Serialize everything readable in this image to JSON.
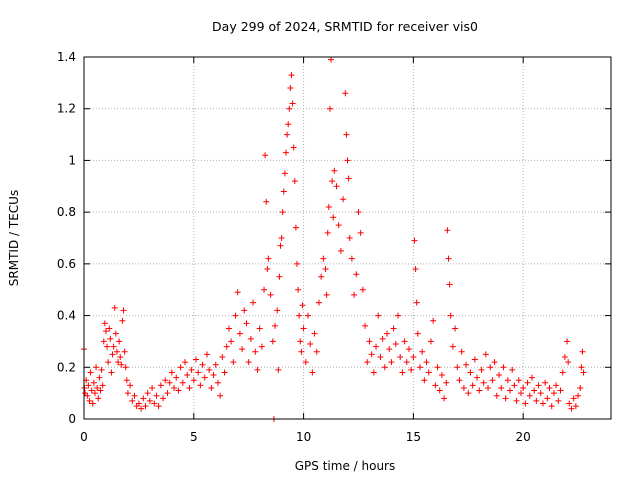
{
  "chart_data": {
    "type": "scatter",
    "title": "Day 299 of 2024, SRMTID for receiver vis0",
    "xlabel": "GPS time / hours",
    "ylabel": "SRMTID / TECUs",
    "xlim": [
      0,
      24
    ],
    "ylim": [
      0,
      1.4
    ],
    "xticks": [
      0,
      5,
      10,
      15,
      20
    ],
    "yticks": [
      0,
      0.2,
      0.4,
      0.6,
      0.8,
      1,
      1.2,
      1.4
    ],
    "xtick_labels": [
      "0",
      "5",
      "10",
      "15",
      "20"
    ],
    "ytick_labels": [
      "0",
      "0.2",
      "0.4",
      "0.6",
      "0.8",
      "1",
      "1.2",
      "1.4"
    ],
    "grid": true,
    "marker": "plus",
    "color": "#ff0000",
    "series": [
      {
        "name": "vis0",
        "points": [
          [
            0.0,
            0.27
          ],
          [
            0.02,
            0.12
          ],
          [
            0.05,
            0.1
          ],
          [
            0.1,
            0.15
          ],
          [
            0.15,
            0.09
          ],
          [
            0.2,
            0.13
          ],
          [
            0.25,
            0.07
          ],
          [
            0.3,
            0.18
          ],
          [
            0.35,
            0.11
          ],
          [
            0.4,
            0.06
          ],
          [
            0.45,
            0.14
          ],
          [
            0.5,
            0.1
          ],
          [
            0.55,
            0.2
          ],
          [
            0.6,
            0.12
          ],
          [
            0.65,
            0.08
          ],
          [
            0.7,
            0.16
          ],
          [
            0.75,
            0.11
          ],
          [
            0.8,
            0.19
          ],
          [
            0.85,
            0.13
          ],
          [
            0.9,
            0.3
          ],
          [
            0.95,
            0.37
          ],
          [
            1.0,
            0.34
          ],
          [
            1.05,
            0.28
          ],
          [
            1.1,
            0.22
          ],
          [
            1.15,
            0.35
          ],
          [
            1.2,
            0.31
          ],
          [
            1.25,
            0.18
          ],
          [
            1.3,
            0.25
          ],
          [
            1.35,
            0.28
          ],
          [
            1.4,
            0.43
          ],
          [
            1.45,
            0.33
          ],
          [
            1.5,
            0.26
          ],
          [
            1.55,
            0.22
          ],
          [
            1.6,
            0.3
          ],
          [
            1.65,
            0.24
          ],
          [
            1.7,
            0.21
          ],
          [
            1.75,
            0.38
          ],
          [
            1.8,
            0.42
          ],
          [
            1.85,
            0.26
          ],
          [
            1.9,
            0.2
          ],
          [
            1.95,
            0.15
          ],
          [
            2.0,
            0.1
          ],
          [
            2.1,
            0.13
          ],
          [
            2.2,
            0.07
          ],
          [
            2.3,
            0.09
          ],
          [
            2.4,
            0.05
          ],
          [
            2.5,
            0.06
          ],
          [
            2.6,
            0.04
          ],
          [
            2.7,
            0.08
          ],
          [
            2.8,
            0.05
          ],
          [
            2.9,
            0.1
          ],
          [
            3.0,
            0.07
          ],
          [
            3.1,
            0.12
          ],
          [
            3.2,
            0.06
          ],
          [
            3.3,
            0.09
          ],
          [
            3.4,
            0.05
          ],
          [
            3.5,
            0.13
          ],
          [
            3.6,
            0.08
          ],
          [
            3.7,
            0.15
          ],
          [
            3.8,
            0.1
          ],
          [
            3.9,
            0.14
          ],
          [
            4.0,
            0.18
          ],
          [
            4.1,
            0.12
          ],
          [
            4.2,
            0.16
          ],
          [
            4.3,
            0.11
          ],
          [
            4.4,
            0.2
          ],
          [
            4.5,
            0.14
          ],
          [
            4.6,
            0.22
          ],
          [
            4.7,
            0.17
          ],
          [
            4.8,
            0.12
          ],
          [
            4.9,
            0.19
          ],
          [
            5.0,
            0.15
          ],
          [
            5.1,
            0.23
          ],
          [
            5.2,
            0.18
          ],
          [
            5.3,
            0.13
          ],
          [
            5.4,
            0.21
          ],
          [
            5.5,
            0.16
          ],
          [
            5.6,
            0.25
          ],
          [
            5.7,
            0.19
          ],
          [
            5.8,
            0.12
          ],
          [
            5.9,
            0.17
          ],
          [
            6.0,
            0.21
          ],
          [
            6.1,
            0.14
          ],
          [
            6.2,
            0.09
          ],
          [
            6.3,
            0.24
          ],
          [
            6.4,
            0.18
          ],
          [
            6.5,
            0.28
          ],
          [
            6.6,
            0.35
          ],
          [
            6.7,
            0.3
          ],
          [
            6.8,
            0.22
          ],
          [
            6.9,
            0.4
          ],
          [
            7.0,
            0.49
          ],
          [
            7.1,
            0.33
          ],
          [
            7.2,
            0.27
          ],
          [
            7.3,
            0.42
          ],
          [
            7.4,
            0.37
          ],
          [
            7.5,
            0.22
          ],
          [
            7.6,
            0.31
          ],
          [
            7.7,
            0.45
          ],
          [
            7.8,
            0.26
          ],
          [
            7.9,
            0.19
          ],
          [
            8.0,
            0.35
          ],
          [
            8.1,
            0.28
          ],
          [
            8.2,
            0.5
          ],
          [
            8.25,
            1.02
          ],
          [
            8.3,
            0.84
          ],
          [
            8.35,
            0.58
          ],
          [
            8.4,
            0.62
          ],
          [
            8.5,
            0.48
          ],
          [
            8.6,
            0.3
          ],
          [
            8.65,
            0.0
          ],
          [
            8.7,
            0.36
          ],
          [
            8.8,
            0.42
          ],
          [
            8.85,
            0.19
          ],
          [
            8.9,
            0.55
          ],
          [
            8.95,
            0.67
          ],
          [
            9.0,
            0.7
          ],
          [
            9.05,
            0.8
          ],
          [
            9.1,
            0.88
          ],
          [
            9.15,
            0.95
          ],
          [
            9.2,
            1.03
          ],
          [
            9.25,
            1.1
          ],
          [
            9.3,
            1.14
          ],
          [
            9.35,
            1.2
          ],
          [
            9.4,
            1.28
          ],
          [
            9.45,
            1.33
          ],
          [
            9.5,
            1.22
          ],
          [
            9.55,
            1.05
          ],
          [
            9.6,
            0.92
          ],
          [
            9.65,
            0.74
          ],
          [
            9.7,
            0.6
          ],
          [
            9.75,
            0.5
          ],
          [
            9.8,
            0.4
          ],
          [
            9.85,
            0.3
          ],
          [
            9.9,
            0.26
          ],
          [
            9.95,
            0.44
          ],
          [
            10.0,
            0.35
          ],
          [
            10.1,
            0.22
          ],
          [
            10.2,
            0.4
          ],
          [
            10.3,
            0.29
          ],
          [
            10.4,
            0.18
          ],
          [
            10.5,
            0.33
          ],
          [
            10.6,
            0.26
          ],
          [
            10.7,
            0.45
          ],
          [
            10.8,
            0.55
          ],
          [
            10.9,
            0.62
          ],
          [
            11.0,
            0.58
          ],
          [
            11.05,
            0.48
          ],
          [
            11.1,
            0.72
          ],
          [
            11.15,
            0.82
          ],
          [
            11.2,
            1.2
          ],
          [
            11.25,
            1.39
          ],
          [
            11.3,
            0.92
          ],
          [
            11.35,
            0.78
          ],
          [
            11.4,
            0.96
          ],
          [
            11.5,
            0.9
          ],
          [
            11.6,
            0.75
          ],
          [
            11.7,
            0.65
          ],
          [
            11.8,
            0.85
          ],
          [
            11.9,
            1.26
          ],
          [
            11.95,
            1.1
          ],
          [
            12.0,
            1.0
          ],
          [
            12.05,
            0.93
          ],
          [
            12.1,
            0.7
          ],
          [
            12.2,
            0.62
          ],
          [
            12.3,
            0.48
          ],
          [
            12.4,
            0.56
          ],
          [
            12.5,
            0.8
          ],
          [
            12.6,
            0.72
          ],
          [
            12.7,
            0.5
          ],
          [
            12.8,
            0.36
          ],
          [
            12.9,
            0.22
          ],
          [
            13.0,
            0.3
          ],
          [
            13.1,
            0.25
          ],
          [
            13.2,
            0.18
          ],
          [
            13.3,
            0.28
          ],
          [
            13.4,
            0.4
          ],
          [
            13.5,
            0.24
          ],
          [
            13.6,
            0.31
          ],
          [
            13.7,
            0.2
          ],
          [
            13.8,
            0.33
          ],
          [
            13.9,
            0.27
          ],
          [
            14.0,
            0.22
          ],
          [
            14.1,
            0.35
          ],
          [
            14.2,
            0.29
          ],
          [
            14.3,
            0.4
          ],
          [
            14.4,
            0.24
          ],
          [
            14.5,
            0.18
          ],
          [
            14.6,
            0.3
          ],
          [
            14.7,
            0.22
          ],
          [
            14.8,
            0.27
          ],
          [
            14.9,
            0.19
          ],
          [
            15.0,
            0.24
          ],
          [
            15.05,
            0.69
          ],
          [
            15.1,
            0.58
          ],
          [
            15.15,
            0.45
          ],
          [
            15.2,
            0.33
          ],
          [
            15.3,
            0.2
          ],
          [
            15.4,
            0.26
          ],
          [
            15.5,
            0.15
          ],
          [
            15.6,
            0.22
          ],
          [
            15.7,
            0.18
          ],
          [
            15.8,
            0.3
          ],
          [
            15.9,
            0.38
          ],
          [
            16.0,
            0.13
          ],
          [
            16.1,
            0.2
          ],
          [
            16.2,
            0.11
          ],
          [
            16.3,
            0.17
          ],
          [
            16.4,
            0.08
          ],
          [
            16.5,
            0.14
          ],
          [
            16.55,
            0.73
          ],
          [
            16.6,
            0.62
          ],
          [
            16.65,
            0.52
          ],
          [
            16.7,
            0.4
          ],
          [
            16.8,
            0.28
          ],
          [
            16.9,
            0.35
          ],
          [
            17.0,
            0.2
          ],
          [
            17.1,
            0.15
          ],
          [
            17.2,
            0.26
          ],
          [
            17.3,
            0.12
          ],
          [
            17.4,
            0.21
          ],
          [
            17.5,
            0.1
          ],
          [
            17.6,
            0.18
          ],
          [
            17.7,
            0.13
          ],
          [
            17.8,
            0.23
          ],
          [
            17.9,
            0.16
          ],
          [
            18.0,
            0.11
          ],
          [
            18.1,
            0.19
          ],
          [
            18.2,
            0.14
          ],
          [
            18.3,
            0.25
          ],
          [
            18.4,
            0.12
          ],
          [
            18.5,
            0.2
          ],
          [
            18.6,
            0.15
          ],
          [
            18.7,
            0.22
          ],
          [
            18.8,
            0.09
          ],
          [
            18.9,
            0.17
          ],
          [
            19.0,
            0.12
          ],
          [
            19.1,
            0.2
          ],
          [
            19.2,
            0.08
          ],
          [
            19.3,
            0.15
          ],
          [
            19.4,
            0.11
          ],
          [
            19.5,
            0.19
          ],
          [
            19.6,
            0.13
          ],
          [
            19.7,
            0.07
          ],
          [
            19.8,
            0.15
          ],
          [
            19.9,
            0.1
          ],
          [
            20.0,
            0.12
          ],
          [
            20.1,
            0.06
          ],
          [
            20.2,
            0.14
          ],
          [
            20.3,
            0.09
          ],
          [
            20.4,
            0.16
          ],
          [
            20.5,
            0.11
          ],
          [
            20.6,
            0.07
          ],
          [
            20.7,
            0.13
          ],
          [
            20.8,
            0.1
          ],
          [
            20.9,
            0.06
          ],
          [
            21.0,
            0.14
          ],
          [
            21.1,
            0.08
          ],
          [
            21.2,
            0.12
          ],
          [
            21.3,
            0.05
          ],
          [
            21.4,
            0.1
          ],
          [
            21.5,
            0.13
          ],
          [
            21.6,
            0.07
          ],
          [
            21.7,
            0.11
          ],
          [
            21.8,
            0.18
          ],
          [
            21.9,
            0.24
          ],
          [
            22.0,
            0.3
          ],
          [
            22.05,
            0.22
          ],
          [
            22.1,
            0.06
          ],
          [
            22.2,
            0.04
          ],
          [
            22.3,
            0.08
          ],
          [
            22.4,
            0.05
          ],
          [
            22.5,
            0.09
          ],
          [
            22.6,
            0.12
          ],
          [
            22.65,
            0.2
          ],
          [
            22.7,
            0.26
          ],
          [
            22.75,
            0.18
          ]
        ]
      }
    ]
  }
}
